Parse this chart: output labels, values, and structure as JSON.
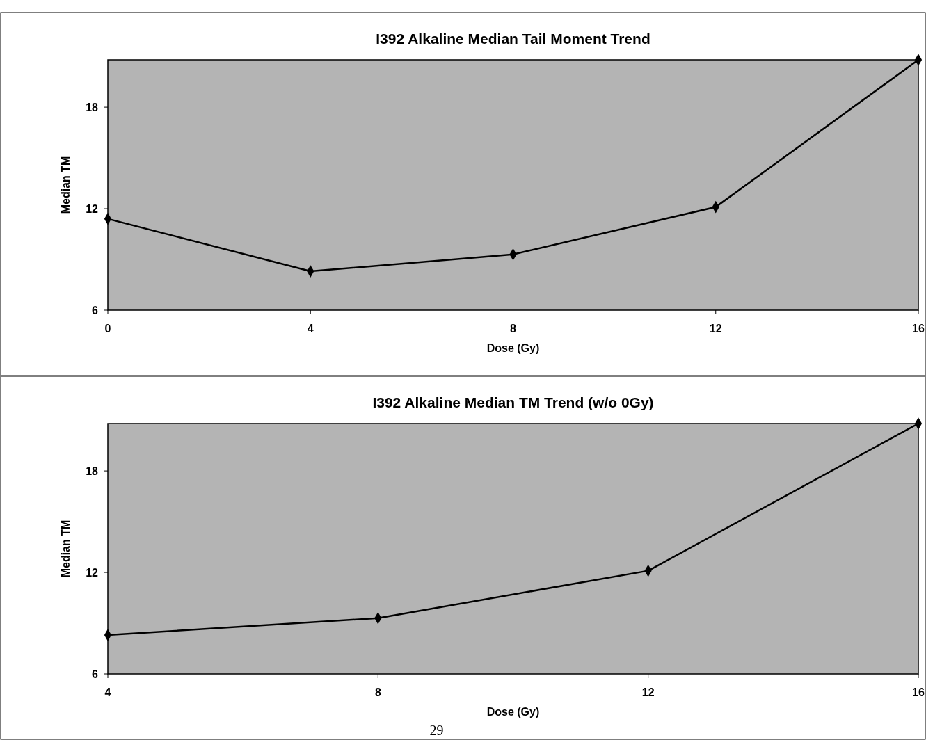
{
  "chart_data": [
    {
      "type": "line",
      "title": "I392 Alkaline Median Tail Moment Trend",
      "xlabel": "Dose (Gy)",
      "ylabel": "Median TM",
      "x": [
        0,
        4,
        8,
        12,
        16
      ],
      "xlim": [
        0,
        16
      ],
      "xticks": [
        0,
        4,
        8,
        12,
        16
      ],
      "ylim": [
        6,
        20.8
      ],
      "yticks": [
        6,
        12,
        18
      ],
      "marker": "diamond",
      "series": [
        {
          "color": "#000000",
          "values": [
            11.4,
            8.3,
            9.3,
            12.1,
            20.8
          ]
        }
      ]
    },
    {
      "type": "line",
      "title": "I392 Alkaline Median  TM Trend (w/o 0Gy)",
      "xlabel": "Dose (Gy)",
      "ylabel": "Median TM",
      "x": [
        4,
        8,
        12,
        16
      ],
      "xlim": [
        4,
        16
      ],
      "xticks": [
        4,
        8,
        12,
        16
      ],
      "ylim": [
        6,
        20.8
      ],
      "yticks": [
        6,
        12,
        18
      ],
      "marker": "diamond",
      "annotations": [
        "29"
      ],
      "series": [
        {
          "color": "#000000",
          "values": [
            8.3,
            9.3,
            12.1,
            20.8
          ]
        }
      ]
    }
  ]
}
